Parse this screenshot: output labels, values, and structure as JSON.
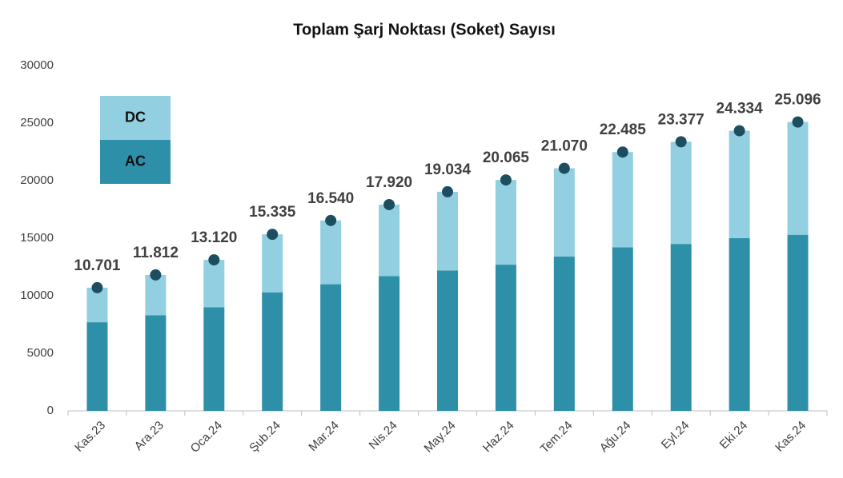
{
  "chart_data": {
    "type": "stacked_bar",
    "title": "Toplam Şarj Noktası (Soket) Sayısı",
    "categories": [
      "Kas.23",
      "Ara.23",
      "Oca.24",
      "Şub.24",
      "Mar.24",
      "Nis.24",
      "May.24",
      "Haz.24",
      "Tem.24",
      "Ağu.24",
      "Eyl.24",
      "Eki.24",
      "Kas.24"
    ],
    "series": [
      {
        "name": "AC",
        "color": "#2e8fa8",
        "values": [
          7700,
          8300,
          9000,
          10300,
          11000,
          11700,
          12200,
          12700,
          13400,
          14200,
          14500,
          15000,
          15300
        ]
      },
      {
        "name": "DC",
        "color": "#92cfe0",
        "values": [
          3001,
          3512,
          4120,
          5035,
          5540,
          6220,
          6834,
          7365,
          7670,
          8285,
          8877,
          9334,
          9796
        ]
      }
    ],
    "total": {
      "color": "#1d4e5f",
      "values": [
        10701,
        11812,
        13120,
        15335,
        16540,
        17920,
        19034,
        20065,
        21070,
        22485,
        23377,
        24334,
        25096
      ],
      "value_labels": [
        "10.701",
        "11.812",
        "13.120",
        "15.335",
        "16.540",
        "17.920",
        "19.034",
        "20.065",
        "21.070",
        "22.485",
        "23.377",
        "24.334",
        "25.096"
      ]
    },
    "ylim": [
      0,
      30000
    ],
    "yticks": [
      0,
      5000,
      10000,
      15000,
      20000,
      25000,
      30000
    ],
    "grid": false,
    "legend": "upper left"
  }
}
